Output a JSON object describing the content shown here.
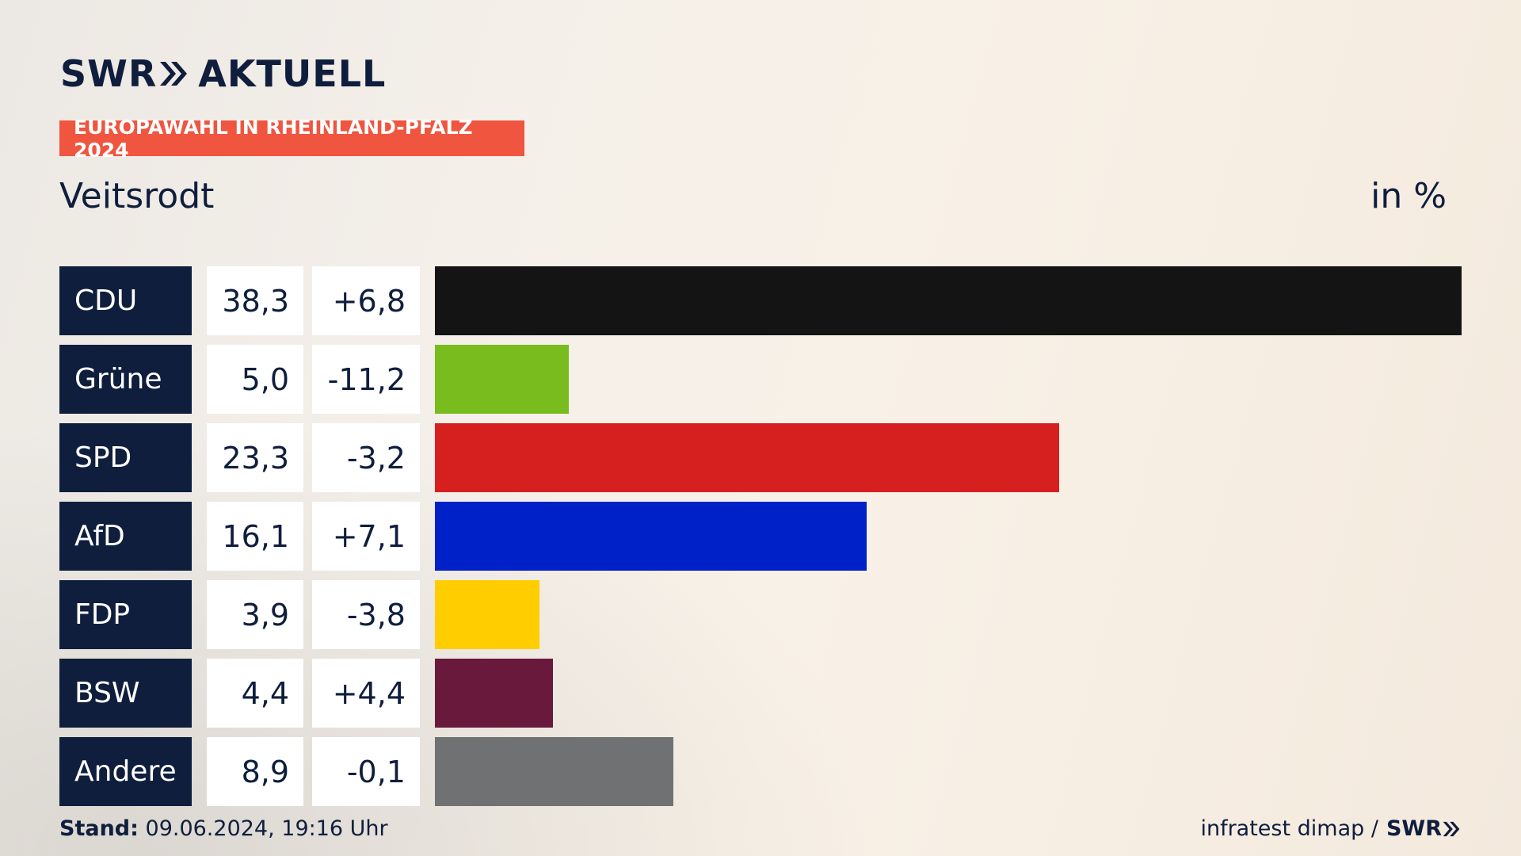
{
  "header": {
    "logo_brand": "SWR",
    "logo_product": "AKTUELL",
    "topic": "EUROPAWAHL IN RHEINLAND-PFALZ 2024",
    "place": "Veitsrodt",
    "unit": "in %"
  },
  "footer": {
    "stand_label": "Stand:",
    "stand_value": "09.06.2024, 19:16 Uhr",
    "source": "infratest dimap /",
    "source_brand": "SWR"
  },
  "chart_data": {
    "type": "bar",
    "orientation": "horizontal",
    "categories": [
      "CDU",
      "Grüne",
      "SPD",
      "AfD",
      "FDP",
      "BSW",
      "Andere"
    ],
    "values": [
      38.3,
      5.0,
      23.3,
      16.1,
      3.9,
      4.4,
      8.9
    ],
    "value_labels": [
      "38,3",
      "5,0",
      "23,3",
      "16,1",
      "3,9",
      "4,4",
      "8,9"
    ],
    "change_labels": [
      "+6,8",
      "-11,2",
      "-3,2",
      "+7,1",
      "-3,8",
      "+4,4",
      "-0,1"
    ],
    "colors": [
      "#141414",
      "#79bc1e",
      "#d6201f",
      "#0021c7",
      "#ffcd00",
      "#69193c",
      "#707173"
    ],
    "xlim": [
      0,
      38.3
    ]
  }
}
